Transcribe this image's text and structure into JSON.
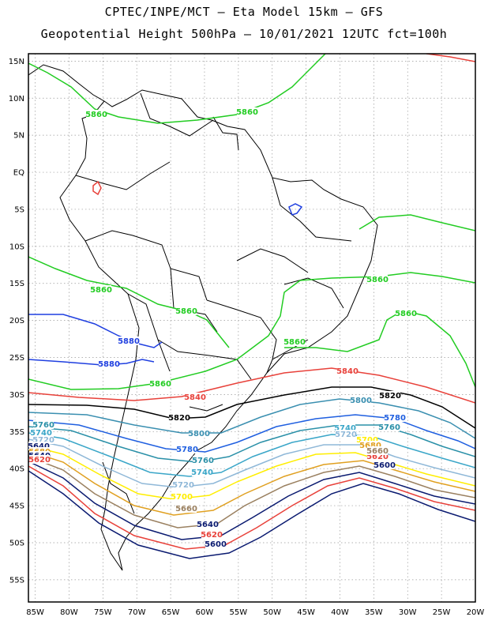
{
  "header": {
    "line1": "CPTEC/INPE/MCT –  Eta Model 15km – GFS",
    "line2": "Geopotential Height 500hPa – 10/01/2021 12UTC fct=100h"
  },
  "map": {
    "lon_range": [
      -86,
      -20
    ],
    "lat_range": [
      -58,
      16
    ],
    "grid": true,
    "lat_ticks": [
      "15N",
      "10N",
      "5N",
      "EQ",
      "5S",
      "10S",
      "15S",
      "20S",
      "25S",
      "30S",
      "35S",
      "40S",
      "45S",
      "50S",
      "55S"
    ],
    "lon_ticks": [
      "85W",
      "80W",
      "75W",
      "70W",
      "65W",
      "60W",
      "55W",
      "50W",
      "45W",
      "40W",
      "35W",
      "30W",
      "25W",
      "20W"
    ]
  },
  "contour_colors": {
    "5880": "#1f3fe0",
    "5860": "#22cc22",
    "5840": "#e8413a",
    "5820": "#000000",
    "5800": "#3a8fb0",
    "5780": "#1f5fe0",
    "5760": "#2a90a8",
    "5740": "#3aa6c8",
    "5720": "#8fb8d8",
    "5700": "#ffee00",
    "5680": "#e0a020",
    "5660": "#9a8060",
    "5640": "#0a1a70",
    "5620": "#e8413a",
    "5600": "#0a1a70"
  },
  "contour_labels": [
    {
      "text": "5860",
      "color": "#22cc22"
    },
    {
      "text": "5860",
      "color": "#22cc22"
    },
    {
      "text": "5860",
      "color": "#22cc22"
    },
    {
      "text": "5860",
      "color": "#22cc22"
    },
    {
      "text": "5860",
      "color": "#22cc22"
    },
    {
      "text": "5860",
      "color": "#22cc22"
    },
    {
      "text": "5860",
      "color": "#22cc22"
    },
    {
      "text": "5860",
      "color": "#22cc22"
    },
    {
      "text": "5880",
      "color": "#1f3fe0"
    },
    {
      "text": "5880",
      "color": "#1f3fe0"
    },
    {
      "text": "5840",
      "color": "#e8413a"
    },
    {
      "text": "5840",
      "color": "#e8413a"
    },
    {
      "text": "5820",
      "color": "#000000"
    },
    {
      "text": "5820",
      "color": "#000000"
    },
    {
      "text": "5800",
      "color": "#3a8fb0"
    },
    {
      "text": "5800",
      "color": "#3a8fb0"
    },
    {
      "text": "5780",
      "color": "#1f5fe0"
    },
    {
      "text": "5780",
      "color": "#1f5fe0"
    },
    {
      "text": "5760",
      "color": "#2a90a8"
    },
    {
      "text": "5760",
      "color": "#2a90a8"
    },
    {
      "text": "5760",
      "color": "#2a90a8"
    },
    {
      "text": "5740",
      "color": "#3aa6c8"
    },
    {
      "text": "5740",
      "color": "#3aa6c8"
    },
    {
      "text": "5740",
      "color": "#3aa6c8"
    },
    {
      "text": "5720",
      "color": "#8fb8d8"
    },
    {
      "text": "5720",
      "color": "#8fb8d8"
    },
    {
      "text": "5720",
      "color": "#8fb8d8"
    },
    {
      "text": "5700",
      "color": "#ffee00"
    },
    {
      "text": "5700",
      "color": "#ffee00"
    },
    {
      "text": "5680",
      "color": "#e0a020"
    },
    {
      "text": "5660",
      "color": "#9a8060"
    },
    {
      "text": "5640",
      "color": "#0a1a70"
    },
    {
      "text": "5640",
      "color": "#0a1a70"
    },
    {
      "text": "5620",
      "color": "#e8413a"
    },
    {
      "text": "5620",
      "color": "#e8413a"
    },
    {
      "text": "5600",
      "color": "#0a1a70"
    },
    {
      "text": "5600",
      "color": "#0a1a70"
    },
    {
      "text": "5680",
      "color": "#e0a020"
    },
    {
      "text": "5660",
      "color": "#9a8060"
    },
    {
      "text": "5640",
      "color": "#0a1a70"
    },
    {
      "text": "5620",
      "color": "#e8413a"
    },
    {
      "text": "5600",
      "color": "#0a1a70"
    }
  ]
}
